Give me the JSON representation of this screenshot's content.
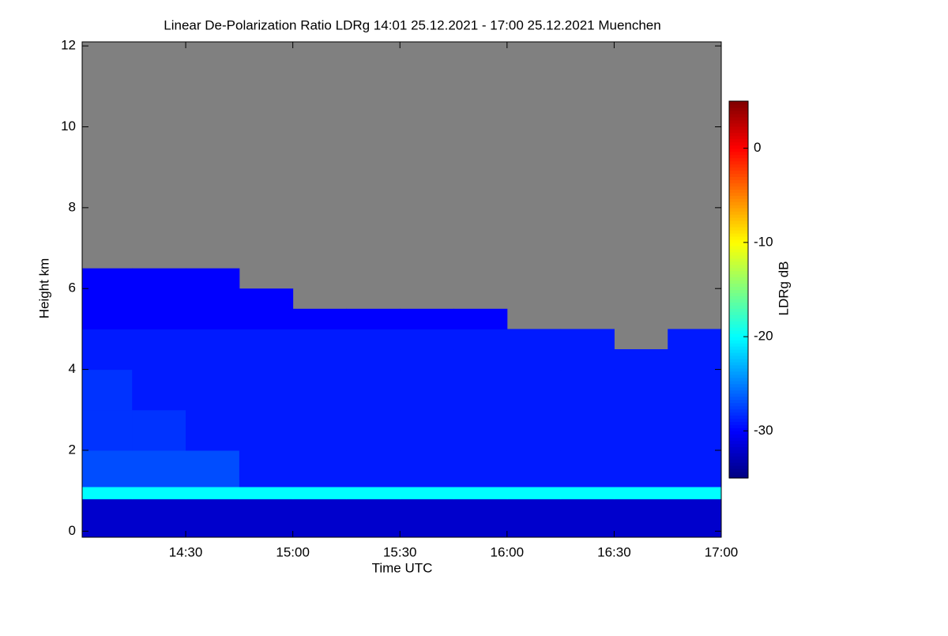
{
  "chart_data": {
    "type": "heatmap",
    "title": "Linear De-Polarization Ratio LDRg   14:01 25.12.2021 - 17:00 25.12.2021 Muenchen",
    "xlabel": "Time UTC",
    "ylabel": "Height km",
    "colorbar_label": "LDRg dB",
    "xlim": [
      "14:01",
      "17:00"
    ],
    "xticks": [
      "14:30",
      "15:00",
      "15:30",
      "16:00",
      "16:30",
      "17:00"
    ],
    "ylim": [
      -0.15,
      12.1
    ],
    "yticks": [
      0,
      2,
      4,
      6,
      8,
      10,
      12
    ],
    "zlim": [
      -35,
      5
    ],
    "zticks": [
      0,
      -10,
      -20,
      -30
    ],
    "colormap": "jet",
    "no_data_color": "#808080",
    "x_edges": [
      "14:01",
      "14:15",
      "14:30",
      "14:45",
      "15:00",
      "15:15",
      "15:30",
      "15:45",
      "16:00",
      "16:15",
      "16:30",
      "16:45",
      "17:00"
    ],
    "y_edges": [
      -0.15,
      0.8,
      1.1,
      2,
      3,
      4,
      4.5,
      5,
      5.5,
      6,
      6.5,
      12.1
    ],
    "z": [
      [
        -32,
        -32,
        -32,
        -32,
        -32,
        -32,
        -32,
        -32,
        -32,
        -32,
        -32,
        -32
      ],
      [
        -20,
        -20,
        -20,
        -20,
        -20,
        -20,
        -20,
        -20,
        -20,
        -20,
        -20,
        -20
      ],
      [
        -27,
        -27,
        -27,
        -29,
        -29,
        -29,
        -29,
        -29,
        -29,
        -29,
        -29,
        -29
      ],
      [
        -28,
        -28,
        -29,
        -29,
        -29,
        -29,
        -29,
        -29,
        -29,
        -29,
        -29,
        -29
      ],
      [
        -28,
        -29,
        -29,
        -29,
        -29,
        -29,
        -29,
        -29,
        -29,
        -29,
        -29,
        -29
      ],
      [
        -29,
        -29,
        -29,
        -29,
        -29,
        -29,
        -29,
        -29,
        -29,
        -29,
        -29,
        -29
      ],
      [
        -29,
        -29,
        -29,
        -29,
        -29,
        -29,
        -29,
        -29,
        -29,
        -29,
        null,
        -29
      ],
      [
        -30,
        -30,
        -30,
        -30,
        -30,
        -30,
        -30,
        -30,
        null,
        null,
        null,
        null
      ],
      [
        -30,
        -30,
        -30,
        -30,
        null,
        null,
        null,
        null,
        null,
        null,
        null,
        null
      ],
      [
        -30,
        -30,
        -30,
        null,
        null,
        null,
        null,
        null,
        null,
        null,
        null,
        null
      ],
      [
        null,
        null,
        null,
        null,
        null,
        null,
        null,
        null,
        null,
        null,
        null,
        null
      ]
    ]
  }
}
